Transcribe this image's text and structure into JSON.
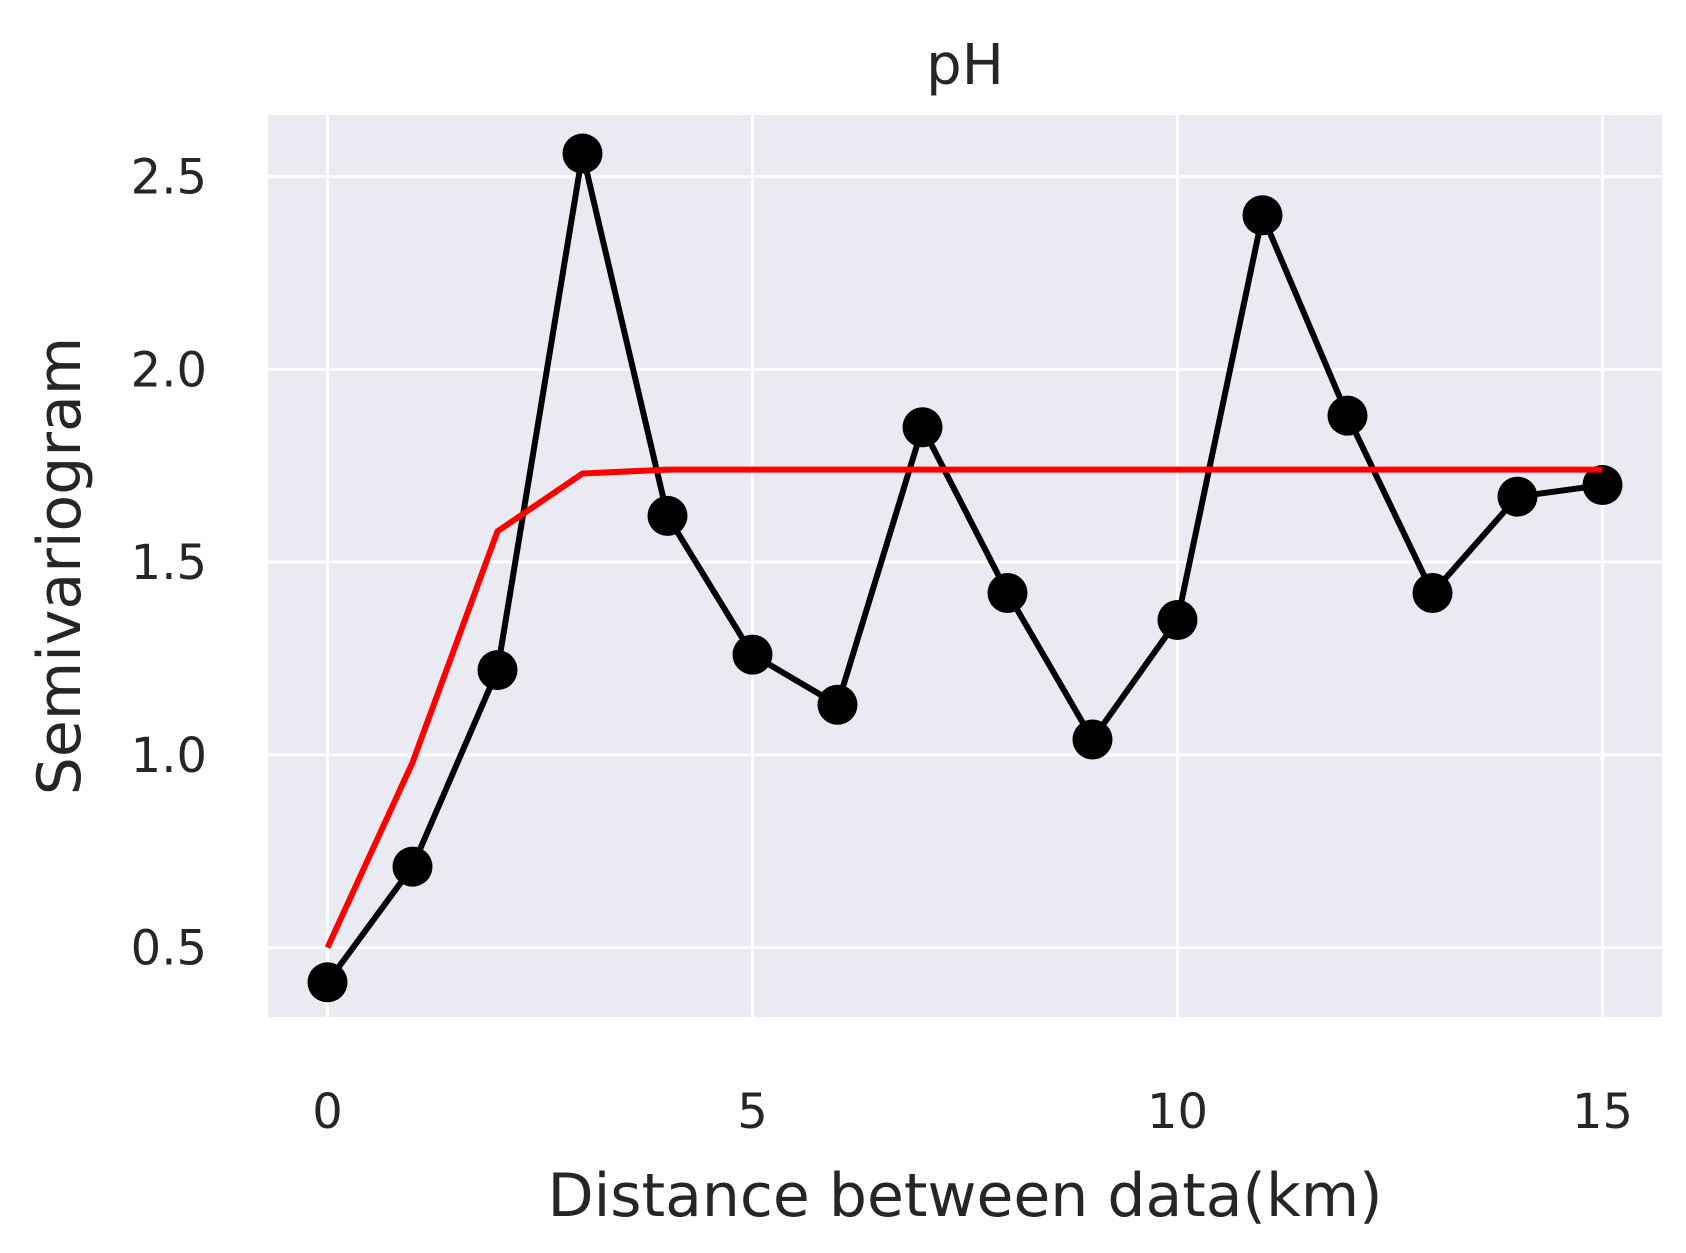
{
  "chart_data": {
    "type": "line",
    "title": "pH",
    "xlabel": "Distance between data(km)",
    "ylabel": "Semivariogram",
    "xlim": [
      -0.7,
      15.7
    ],
    "ylim": [
      0.32,
      2.66
    ],
    "xticks": [
      0,
      5,
      10,
      15
    ],
    "xtick_labels": [
      "0",
      "5",
      "10",
      "15"
    ],
    "yticks": [
      0.5,
      1.0,
      1.5,
      2.0,
      2.5
    ],
    "ytick_labels": [
      "0.5",
      "1.0",
      "1.5",
      "2.0",
      "2.5"
    ],
    "grid": true,
    "background_color": "#eaeaf2",
    "series": [
      {
        "color": "#000000",
        "marker": "circle",
        "x": [
          0,
          1,
          2,
          3,
          4,
          5,
          6,
          7,
          8,
          9,
          10,
          11,
          12,
          13,
          14,
          15
        ],
        "y": [
          0.41,
          0.71,
          1.22,
          2.56,
          1.62,
          1.26,
          1.13,
          1.85,
          1.42,
          1.04,
          1.35,
          2.4,
          1.88,
          1.42,
          1.67,
          1.7
        ]
      },
      {
        "color": "#ff0000",
        "marker": "none",
        "x": [
          0,
          1,
          2,
          3,
          4,
          5,
          6,
          7,
          8,
          9,
          10,
          11,
          12,
          13,
          14,
          15
        ],
        "y": [
          0.5,
          0.98,
          1.58,
          1.73,
          1.74,
          1.74,
          1.74,
          1.74,
          1.74,
          1.74,
          1.74,
          1.74,
          1.74,
          1.74,
          1.74,
          1.74
        ]
      }
    ]
  }
}
